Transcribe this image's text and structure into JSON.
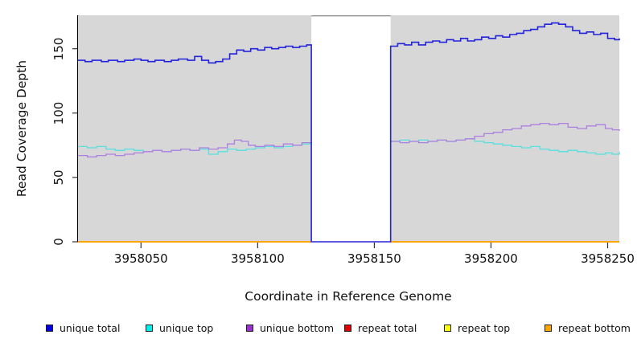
{
  "chart_data": {
    "type": "line",
    "title": "",
    "xlabel": "Coordinate in Reference Genome",
    "ylabel": "Read Coverage Depth",
    "xlim": [
      3958023,
      3958255
    ],
    "ylim": [
      0,
      176
    ],
    "x_ticks": [
      3958050,
      3958100,
      3958150,
      3958200,
      3958250
    ],
    "x_tick_labels": [
      "3958050",
      "3958100",
      "3958150",
      "3958200",
      "3958250"
    ],
    "y_ticks": [
      0,
      50,
      100,
      150
    ],
    "y_tick_labels": [
      "0",
      "50",
      "100",
      "150"
    ],
    "grid": false,
    "panel_bg": "#d7d7d7",
    "masked_region": {
      "x0": 3958123,
      "x1": 3958157,
      "fill": "#ffffff",
      "border_color": "#949494"
    },
    "step_interpolation": true,
    "series": [
      {
        "name": "repeat total",
        "color": "#de0000",
        "width": 2,
        "points": [
          [
            3958023,
            0
          ],
          [
            3958255,
            0
          ]
        ]
      },
      {
        "name": "repeat top",
        "color": "#ffff00",
        "width": 2,
        "points": [
          [
            3958023,
            0
          ],
          [
            3958255,
            0
          ]
        ]
      },
      {
        "name": "repeat bottom",
        "color": "#ffa500",
        "width": 2,
        "points": [
          [
            3958023,
            0
          ],
          [
            3958255,
            0
          ]
        ]
      },
      {
        "name": "unique top",
        "color": "#57e0e0",
        "width": 1.3,
        "points": [
          [
            3958023,
            74
          ],
          [
            3958027,
            73
          ],
          [
            3958031,
            74
          ],
          [
            3958035,
            72
          ],
          [
            3958039,
            71
          ],
          [
            3958043,
            72
          ],
          [
            3958047,
            71
          ],
          [
            3958051,
            70
          ],
          [
            3958055,
            71
          ],
          [
            3958059,
            70
          ],
          [
            3958063,
            71
          ],
          [
            3958067,
            72
          ],
          [
            3958071,
            71
          ],
          [
            3958075,
            72
          ],
          [
            3958079,
            68
          ],
          [
            3958083,
            70
          ],
          [
            3958087,
            72
          ],
          [
            3958091,
            71
          ],
          [
            3958095,
            72
          ],
          [
            3958099,
            73
          ],
          [
            3958103,
            74
          ],
          [
            3958107,
            73
          ],
          [
            3958111,
            74
          ],
          [
            3958115,
            75
          ],
          [
            3958119,
            76
          ],
          [
            3958123,
            77
          ],
          [
            3958140,
            77
          ],
          [
            3958157,
            78
          ],
          [
            3958161,
            79
          ],
          [
            3958165,
            78
          ],
          [
            3958169,
            79
          ],
          [
            3958173,
            78
          ],
          [
            3958177,
            79
          ],
          [
            3958181,
            78
          ],
          [
            3958185,
            79
          ],
          [
            3958189,
            80
          ],
          [
            3958193,
            78
          ],
          [
            3958197,
            77
          ],
          [
            3958201,
            76
          ],
          [
            3958205,
            75
          ],
          [
            3958209,
            74
          ],
          [
            3958213,
            73
          ],
          [
            3958217,
            74
          ],
          [
            3958221,
            72
          ],
          [
            3958225,
            71
          ],
          [
            3958229,
            70
          ],
          [
            3958233,
            71
          ],
          [
            3958237,
            70
          ],
          [
            3958241,
            69
          ],
          [
            3958245,
            68
          ],
          [
            3958249,
            69
          ],
          [
            3958252,
            68
          ],
          [
            3958255,
            70
          ]
        ]
      },
      {
        "name": "unique bottom",
        "color": "#af7fe0",
        "width": 1.3,
        "points": [
          [
            3958023,
            67
          ],
          [
            3958027,
            66
          ],
          [
            3958031,
            67
          ],
          [
            3958035,
            68
          ],
          [
            3958039,
            67
          ],
          [
            3958043,
            68
          ],
          [
            3958047,
            69
          ],
          [
            3958051,
            70
          ],
          [
            3958055,
            71
          ],
          [
            3958059,
            70
          ],
          [
            3958063,
            71
          ],
          [
            3958067,
            72
          ],
          [
            3958071,
            71
          ],
          [
            3958075,
            73
          ],
          [
            3958079,
            72
          ],
          [
            3958083,
            73
          ],
          [
            3958087,
            76
          ],
          [
            3958090,
            79
          ],
          [
            3958093,
            78
          ],
          [
            3958096,
            75
          ],
          [
            3958099,
            74
          ],
          [
            3958103,
            75
          ],
          [
            3958107,
            74
          ],
          [
            3958111,
            76
          ],
          [
            3958115,
            75
          ],
          [
            3958119,
            77
          ],
          [
            3958123,
            78
          ],
          [
            3958140,
            77
          ],
          [
            3958157,
            78
          ],
          [
            3958161,
            77
          ],
          [
            3958165,
            78
          ],
          [
            3958169,
            77
          ],
          [
            3958173,
            78
          ],
          [
            3958177,
            79
          ],
          [
            3958181,
            78
          ],
          [
            3958185,
            79
          ],
          [
            3958189,
            80
          ],
          [
            3958193,
            82
          ],
          [
            3958197,
            84
          ],
          [
            3958201,
            85
          ],
          [
            3958205,
            87
          ],
          [
            3958209,
            88
          ],
          [
            3958213,
            90
          ],
          [
            3958217,
            91
          ],
          [
            3958221,
            92
          ],
          [
            3958225,
            91
          ],
          [
            3958229,
            92
          ],
          [
            3958233,
            89
          ],
          [
            3958237,
            88
          ],
          [
            3958241,
            90
          ],
          [
            3958245,
            91
          ],
          [
            3958249,
            88
          ],
          [
            3958252,
            87
          ],
          [
            3958255,
            86
          ]
        ]
      },
      {
        "name": "unique total",
        "color": "#2323dc",
        "width": 1.6,
        "above_mask": true,
        "points": [
          [
            3958023,
            141
          ],
          [
            3958026,
            140
          ],
          [
            3958029,
            141
          ],
          [
            3958033,
            140
          ],
          [
            3958036,
            141
          ],
          [
            3958040,
            140
          ],
          [
            3958043,
            141
          ],
          [
            3958047,
            142
          ],
          [
            3958050,
            141
          ],
          [
            3958053,
            140
          ],
          [
            3958056,
            141
          ],
          [
            3958060,
            140
          ],
          [
            3958063,
            141
          ],
          [
            3958066,
            142
          ],
          [
            3958070,
            141
          ],
          [
            3958073,
            144
          ],
          [
            3958076,
            141
          ],
          [
            3958079,
            139
          ],
          [
            3958082,
            140
          ],
          [
            3958085,
            142
          ],
          [
            3958088,
            146
          ],
          [
            3958091,
            149
          ],
          [
            3958094,
            148
          ],
          [
            3958097,
            150
          ],
          [
            3958100,
            149
          ],
          [
            3958103,
            151
          ],
          [
            3958106,
            150
          ],
          [
            3958109,
            151
          ],
          [
            3958112,
            152
          ],
          [
            3958115,
            151
          ],
          [
            3958118,
            152
          ],
          [
            3958121,
            153
          ],
          [
            3958123,
            153
          ],
          [
            3958123,
            0
          ],
          [
            3958157,
            0
          ],
          [
            3958157,
            152
          ],
          [
            3958160,
            154
          ],
          [
            3958163,
            153
          ],
          [
            3958166,
            155
          ],
          [
            3958169,
            153
          ],
          [
            3958172,
            155
          ],
          [
            3958175,
            156
          ],
          [
            3958178,
            155
          ],
          [
            3958181,
            157
          ],
          [
            3958184,
            156
          ],
          [
            3958187,
            158
          ],
          [
            3958190,
            156
          ],
          [
            3958193,
            157
          ],
          [
            3958196,
            159
          ],
          [
            3958199,
            158
          ],
          [
            3958202,
            160
          ],
          [
            3958205,
            159
          ],
          [
            3958208,
            161
          ],
          [
            3958211,
            162
          ],
          [
            3958214,
            164
          ],
          [
            3958217,
            165
          ],
          [
            3958220,
            167
          ],
          [
            3958223,
            169
          ],
          [
            3958226,
            170
          ],
          [
            3958229,
            169
          ],
          [
            3958232,
            167
          ],
          [
            3958235,
            164
          ],
          [
            3958238,
            162
          ],
          [
            3958241,
            163
          ],
          [
            3958244,
            161
          ],
          [
            3958247,
            162
          ],
          [
            3958250,
            158
          ],
          [
            3958253,
            157
          ],
          [
            3958255,
            158
          ]
        ]
      }
    ],
    "legend": {
      "position": "bottom",
      "entries": [
        {
          "label": "unique total",
          "fill": "#0000ee"
        },
        {
          "label": "unique top",
          "fill": "#00eeee"
        },
        {
          "label": "unique bottom",
          "fill": "#9932cc"
        },
        {
          "label": "repeat total",
          "fill": "#de0000"
        },
        {
          "label": "repeat top",
          "fill": "#ffff00"
        },
        {
          "label": "repeat bottom",
          "fill": "#ffa500"
        }
      ]
    }
  }
}
